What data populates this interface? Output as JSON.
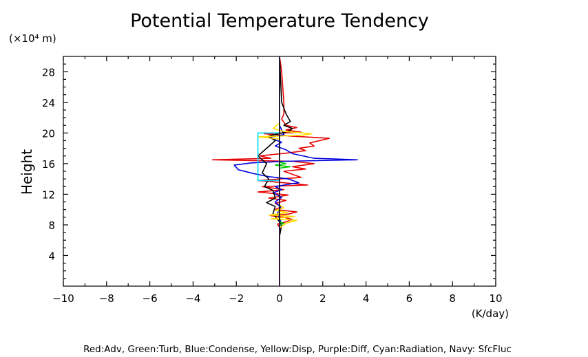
{
  "chart_data": {
    "type": "line",
    "title": "Potential Temperature Tendency",
    "ylabel": "Height",
    "yscale_label": "(×10⁴ m)",
    "xunit": "(K/day)",
    "xlim": [
      -10,
      10
    ],
    "ylim": [
      0,
      30
    ],
    "xticks": [
      -10,
      -8,
      -6,
      -4,
      -2,
      0,
      2,
      4,
      6,
      8,
      10
    ],
    "yticks": [
      4,
      8,
      12,
      16,
      20,
      24,
      28
    ],
    "grid": false,
    "legend_text": "Red:Adv, Green:Turb, Blue:Condense, Yellow:Disp, Purple:Diff, Cyan:Radiation, Navy: SfcFluc",
    "series": [
      {
        "color": "#e60000",
        "points": [
          [
            0,
            0
          ],
          [
            0,
            4
          ],
          [
            0,
            6
          ],
          [
            0,
            7
          ],
          [
            0.05,
            7.5
          ],
          [
            -0.1,
            8.1
          ],
          [
            0.3,
            8.4
          ],
          [
            0.6,
            8.7
          ],
          [
            0.2,
            9.0
          ],
          [
            -0.4,
            9.2
          ],
          [
            0.4,
            9.4
          ],
          [
            0.8,
            9.7
          ],
          [
            -0.2,
            10.0
          ],
          [
            0.1,
            10.4
          ],
          [
            -0.2,
            10.8
          ],
          [
            0.3,
            11.2
          ],
          [
            -0.5,
            11.5
          ],
          [
            0.4,
            11.9
          ],
          [
            -1.0,
            12.3
          ],
          [
            0.2,
            12.6
          ],
          [
            -0.8,
            13.0
          ],
          [
            1.3,
            13.2
          ],
          [
            0.2,
            13.5
          ],
          [
            -1.0,
            13.8
          ],
          [
            1.0,
            14.2
          ],
          [
            0.6,
            14.6
          ],
          [
            0.2,
            15.0
          ],
          [
            1.2,
            15.3
          ],
          [
            0.6,
            15.6
          ],
          [
            1.6,
            16.0
          ],
          [
            0.6,
            16.3
          ],
          [
            -3.1,
            16.5
          ],
          [
            -0.4,
            16.7
          ],
          [
            -0.9,
            17.0
          ],
          [
            0.4,
            17.4
          ],
          [
            1.2,
            17.7
          ],
          [
            0.9,
            18.0
          ],
          [
            1.6,
            18.3
          ],
          [
            1.4,
            18.7
          ],
          [
            2.3,
            19.3
          ],
          [
            0.5,
            19.6
          ],
          [
            -0.7,
            19.9
          ],
          [
            1.0,
            20.1
          ],
          [
            0.3,
            20.4
          ],
          [
            0.8,
            20.7
          ],
          [
            0.3,
            21.0
          ],
          [
            0.2,
            21.4
          ],
          [
            0.1,
            21.8
          ],
          [
            0.2,
            22.5
          ],
          [
            0.2,
            24
          ],
          [
            0.15,
            26
          ],
          [
            0.1,
            28
          ],
          [
            0.05,
            29
          ],
          [
            0,
            30
          ]
        ]
      },
      {
        "color": "#0000e0",
        "points": [
          [
            0,
            7.5
          ],
          [
            0.05,
            8.5
          ],
          [
            -0.1,
            9.5
          ],
          [
            0.05,
            10.3
          ],
          [
            -0.2,
            11.0
          ],
          [
            0.1,
            11.6
          ],
          [
            -0.3,
            12.2
          ],
          [
            0.1,
            12.6
          ],
          [
            -0.2,
            13.0
          ],
          [
            0.4,
            13.3
          ],
          [
            0.9,
            13.5
          ],
          [
            0.4,
            14.0
          ],
          [
            -0.5,
            14.3
          ],
          [
            -1.2,
            14.7
          ],
          [
            -1.9,
            15.2
          ],
          [
            -2.1,
            15.8
          ],
          [
            -1.3,
            16.1
          ],
          [
            0.2,
            16.3
          ],
          [
            3.6,
            16.5
          ],
          [
            1.6,
            16.7
          ],
          [
            0.6,
            17.3
          ],
          [
            0.3,
            17.8
          ],
          [
            -0.2,
            18.3
          ],
          [
            0.1,
            18.8
          ],
          [
            -0.5,
            19.4
          ],
          [
            0.2,
            19.8
          ],
          [
            0,
            21
          ],
          [
            0,
            30
          ]
        ]
      },
      {
        "color": "#000000",
        "points": [
          [
            0,
            6.5
          ],
          [
            0.1,
            8
          ],
          [
            -0.3,
            9.5
          ],
          [
            -0.2,
            10.4
          ],
          [
            -0.6,
            10.9
          ],
          [
            -0.2,
            11.5
          ],
          [
            -0.3,
            12.5
          ],
          [
            -0.7,
            13.0
          ],
          [
            -0.5,
            14.0
          ],
          [
            -0.8,
            14.8
          ],
          [
            -0.6,
            16.0
          ],
          [
            -1.0,
            17.0
          ],
          [
            -0.6,
            18.0
          ],
          [
            -0.2,
            19.0
          ],
          [
            -0.5,
            19.6
          ],
          [
            0.4,
            20.2
          ],
          [
            0.6,
            20.6
          ],
          [
            0.2,
            21.0
          ],
          [
            0.5,
            21.5
          ],
          [
            0.3,
            22.5
          ],
          [
            0.1,
            24
          ],
          [
            0,
            30
          ]
        ]
      },
      {
        "color": "#ffdd00",
        "points": [
          [
            0,
            7.6
          ],
          [
            0.3,
            8.2
          ],
          [
            0.8,
            8.6
          ],
          [
            -0.4,
            8.8
          ],
          [
            0.7,
            9.1
          ],
          [
            -0.5,
            9.3
          ],
          [
            0.4,
            9.6
          ],
          [
            -0.2,
            9.9
          ],
          [
            0.2,
            10.2
          ],
          [
            0,
            10.6
          ],
          [
            0,
            19.2
          ],
          [
            -1.0,
            19.5
          ],
          [
            1.0,
            19.7
          ],
          [
            1.5,
            19.9
          ],
          [
            0.2,
            20.2
          ],
          [
            -0.3,
            20.6
          ],
          [
            0,
            21.3
          ],
          [
            0,
            22
          ]
        ]
      },
      {
        "color": "#00d8ff",
        "points": [
          [
            0,
            13.8
          ],
          [
            -1.0,
            13.8
          ],
          [
            -1.0,
            20.0
          ],
          [
            0,
            20.0
          ]
        ]
      },
      {
        "color": "#00cc00",
        "points": [
          [
            0,
            8.0
          ],
          [
            0.2,
            8.2
          ],
          [
            0,
            8.4
          ],
          [
            0,
            15.4
          ],
          [
            0.5,
            15.6
          ],
          [
            -0.2,
            15.8
          ],
          [
            0.3,
            16.0
          ],
          [
            0,
            16.2
          ],
          [
            0,
            30
          ]
        ]
      },
      {
        "color": "#8a2be2",
        "points": [
          [
            0,
            0
          ],
          [
            0,
            30
          ]
        ]
      }
    ]
  }
}
